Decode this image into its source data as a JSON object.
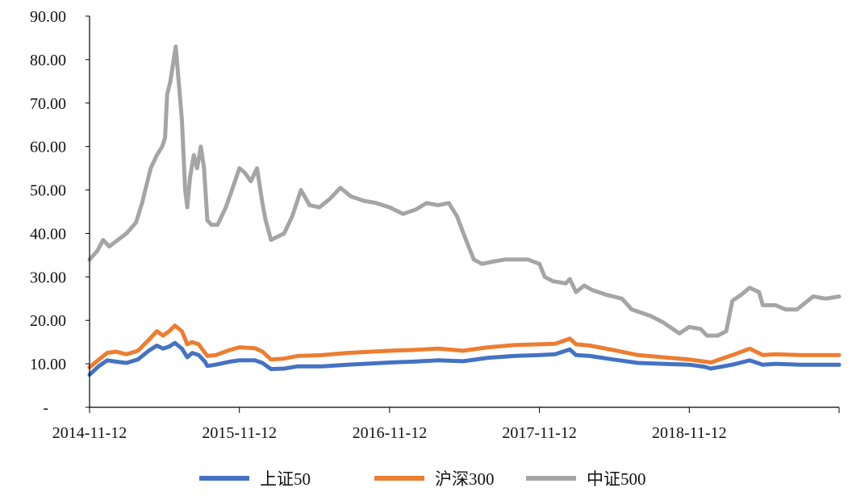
{
  "chart_data": {
    "type": "line",
    "title": "",
    "xlabel": "",
    "ylabel": "",
    "ylim": [
      0,
      90
    ],
    "yticks": [
      {
        "value": 0,
        "label": "-"
      },
      {
        "value": 10,
        "label": "10.00"
      },
      {
        "value": 20,
        "label": "20.00"
      },
      {
        "value": 30,
        "label": "30.00"
      },
      {
        "value": 40,
        "label": "40.00"
      },
      {
        "value": 50,
        "label": "50.00"
      },
      {
        "value": 60,
        "label": "60.00"
      },
      {
        "value": 70,
        "label": "70.00"
      },
      {
        "value": 80,
        "label": "80.00"
      },
      {
        "value": 90,
        "label": "90.00"
      }
    ],
    "xlim": [
      "2014-11-12",
      "2019-11-12"
    ],
    "xticks": [
      "2014-11-12",
      "2015-11-12",
      "2016-11-12",
      "2017-11-12",
      "2018-11-12"
    ],
    "grid": false,
    "legend_position": "bottom",
    "series": [
      {
        "name": "上证50",
        "color": "#4472C4",
        "points": [
          [
            "2014-11-12",
            7.5
          ],
          [
            "2014-12-05",
            9.5
          ],
          [
            "2014-12-25",
            10.8
          ],
          [
            "2015-01-15",
            10.5
          ],
          [
            "2015-02-10",
            10.2
          ],
          [
            "2015-03-10",
            11.0
          ],
          [
            "2015-04-05",
            13.0
          ],
          [
            "2015-04-25",
            14.2
          ],
          [
            "2015-05-10",
            13.5
          ],
          [
            "2015-05-25",
            14.0
          ],
          [
            "2015-06-08",
            14.8
          ],
          [
            "2015-06-25",
            13.5
          ],
          [
            "2015-07-08",
            11.5
          ],
          [
            "2015-07-20",
            12.5
          ],
          [
            "2015-08-05",
            12.0
          ],
          [
            "2015-08-20",
            10.5
          ],
          [
            "2015-08-26",
            9.5
          ],
          [
            "2015-09-15",
            9.8
          ],
          [
            "2015-10-20",
            10.5
          ],
          [
            "2015-11-12",
            10.8
          ],
          [
            "2015-12-20",
            10.8
          ],
          [
            "2016-01-07",
            10.2
          ],
          [
            "2016-01-28",
            8.8
          ],
          [
            "2016-02-29",
            8.9
          ],
          [
            "2016-04-01",
            9.4
          ],
          [
            "2016-06-01",
            9.4
          ],
          [
            "2016-08-01",
            9.8
          ],
          [
            "2016-11-12",
            10.3
          ],
          [
            "2017-01-10",
            10.5
          ],
          [
            "2017-03-10",
            10.8
          ],
          [
            "2017-05-10",
            10.6
          ],
          [
            "2017-07-10",
            11.4
          ],
          [
            "2017-09-10",
            11.8
          ],
          [
            "2017-11-12",
            12.0
          ],
          [
            "2017-12-20",
            12.2
          ],
          [
            "2018-01-25",
            13.3
          ],
          [
            "2018-02-09",
            12.0
          ],
          [
            "2018-03-15",
            11.8
          ],
          [
            "2018-05-10",
            11.0
          ],
          [
            "2018-07-10",
            10.2
          ],
          [
            "2018-09-10",
            10.0
          ],
          [
            "2018-11-12",
            9.8
          ],
          [
            "2018-12-20",
            9.3
          ],
          [
            "2019-01-03",
            8.9
          ],
          [
            "2019-02-25",
            9.8
          ],
          [
            "2019-04-08",
            10.8
          ],
          [
            "2019-05-10",
            9.8
          ],
          [
            "2019-06-10",
            10.0
          ],
          [
            "2019-08-10",
            9.8
          ],
          [
            "2019-11-12",
            9.8
          ]
        ]
      },
      {
        "name": "沪深300",
        "color": "#ED7D31",
        "points": [
          [
            "2014-11-12",
            9.2
          ],
          [
            "2014-12-05",
            11.0
          ],
          [
            "2014-12-25",
            12.5
          ],
          [
            "2015-01-15",
            12.8
          ],
          [
            "2015-02-10",
            12.2
          ],
          [
            "2015-03-10",
            13.0
          ],
          [
            "2015-04-05",
            15.5
          ],
          [
            "2015-04-25",
            17.5
          ],
          [
            "2015-05-10",
            16.5
          ],
          [
            "2015-05-25",
            17.5
          ],
          [
            "2015-06-08",
            18.8
          ],
          [
            "2015-06-25",
            17.5
          ],
          [
            "2015-07-08",
            14.5
          ],
          [
            "2015-07-20",
            15.0
          ],
          [
            "2015-08-05",
            14.5
          ],
          [
            "2015-08-20",
            12.5
          ],
          [
            "2015-08-26",
            11.8
          ],
          [
            "2015-09-15",
            12.0
          ],
          [
            "2015-10-20",
            13.2
          ],
          [
            "2015-11-12",
            13.8
          ],
          [
            "2015-12-20",
            13.6
          ],
          [
            "2016-01-07",
            12.8
          ],
          [
            "2016-01-28",
            11.0
          ],
          [
            "2016-02-29",
            11.2
          ],
          [
            "2016-04-01",
            11.8
          ],
          [
            "2016-06-01",
            12.0
          ],
          [
            "2016-08-01",
            12.5
          ],
          [
            "2016-11-12",
            13.0
          ],
          [
            "2017-01-10",
            13.2
          ],
          [
            "2017-03-10",
            13.5
          ],
          [
            "2017-05-10",
            13.0
          ],
          [
            "2017-07-10",
            13.8
          ],
          [
            "2017-09-10",
            14.3
          ],
          [
            "2017-11-12",
            14.5
          ],
          [
            "2017-12-20",
            14.6
          ],
          [
            "2018-01-25",
            15.8
          ],
          [
            "2018-02-09",
            14.5
          ],
          [
            "2018-03-15",
            14.2
          ],
          [
            "2018-05-10",
            13.2
          ],
          [
            "2018-07-10",
            12.0
          ],
          [
            "2018-09-10",
            11.5
          ],
          [
            "2018-11-12",
            11.0
          ],
          [
            "2018-12-20",
            10.5
          ],
          [
            "2019-01-03",
            10.3
          ],
          [
            "2019-02-25",
            12.0
          ],
          [
            "2019-04-08",
            13.5
          ],
          [
            "2019-05-10",
            12.0
          ],
          [
            "2019-06-10",
            12.2
          ],
          [
            "2019-08-10",
            12.0
          ],
          [
            "2019-11-12",
            12.0
          ]
        ]
      },
      {
        "name": "中证500",
        "color": "#A5A5A5",
        "points": [
          [
            "2014-11-12",
            34.0
          ],
          [
            "2014-12-01",
            36.0
          ],
          [
            "2014-12-15",
            38.5
          ],
          [
            "2014-12-30",
            37.0
          ],
          [
            "2015-01-20",
            38.5
          ],
          [
            "2015-02-10",
            40.0
          ],
          [
            "2015-03-05",
            42.5
          ],
          [
            "2015-03-20",
            47.0
          ],
          [
            "2015-04-10",
            55.0
          ],
          [
            "2015-04-25",
            58.0
          ],
          [
            "2015-05-08",
            60.0
          ],
          [
            "2015-05-15",
            62.0
          ],
          [
            "2015-05-20",
            72.0
          ],
          [
            "2015-05-28",
            75.0
          ],
          [
            "2015-06-05",
            80.0
          ],
          [
            "2015-06-10",
            83.0
          ],
          [
            "2015-06-18",
            74.0
          ],
          [
            "2015-06-25",
            66.0
          ],
          [
            "2015-07-03",
            50.0
          ],
          [
            "2015-07-08",
            46.0
          ],
          [
            "2015-07-15",
            53.0
          ],
          [
            "2015-07-24",
            58.0
          ],
          [
            "2015-08-01",
            55.0
          ],
          [
            "2015-08-10",
            60.0
          ],
          [
            "2015-08-18",
            55.0
          ],
          [
            "2015-08-26",
            43.0
          ],
          [
            "2015-09-05",
            42.0
          ],
          [
            "2015-09-20",
            42.0
          ],
          [
            "2015-10-10",
            46.0
          ],
          [
            "2015-10-25",
            50.0
          ],
          [
            "2015-11-12",
            55.0
          ],
          [
            "2015-11-25",
            54.0
          ],
          [
            "2015-12-10",
            52.0
          ],
          [
            "2015-12-25",
            55.0
          ],
          [
            "2016-01-07",
            47.0
          ],
          [
            "2016-01-15",
            43.0
          ],
          [
            "2016-01-28",
            38.5
          ],
          [
            "2016-02-29",
            40.0
          ],
          [
            "2016-03-20",
            44.0
          ],
          [
            "2016-04-10",
            50.0
          ],
          [
            "2016-05-01",
            46.5
          ],
          [
            "2016-05-25",
            46.0
          ],
          [
            "2016-06-20",
            48.0
          ],
          [
            "2016-07-15",
            50.5
          ],
          [
            "2016-08-10",
            48.5
          ],
          [
            "2016-09-10",
            47.5
          ],
          [
            "2016-10-10",
            47.0
          ],
          [
            "2016-11-12",
            46.0
          ],
          [
            "2016-12-15",
            44.5
          ],
          [
            "2017-01-15",
            45.5
          ],
          [
            "2017-02-10",
            47.0
          ],
          [
            "2017-03-10",
            46.5
          ],
          [
            "2017-04-05",
            47.0
          ],
          [
            "2017-04-25",
            44.0
          ],
          [
            "2017-05-15",
            39.0
          ],
          [
            "2017-06-05",
            34.0
          ],
          [
            "2017-06-25",
            33.0
          ],
          [
            "2017-07-20",
            33.5
          ],
          [
            "2017-08-20",
            34.0
          ],
          [
            "2017-09-15",
            34.0
          ],
          [
            "2017-10-15",
            34.0
          ],
          [
            "2017-11-12",
            33.0
          ],
          [
            "2017-11-25",
            30.0
          ],
          [
            "2017-12-15",
            29.0
          ],
          [
            "2018-01-15",
            28.5
          ],
          [
            "2018-01-25",
            29.5
          ],
          [
            "2018-02-09",
            26.5
          ],
          [
            "2018-03-01",
            28.0
          ],
          [
            "2018-03-20",
            27.0
          ],
          [
            "2018-04-20",
            26.0
          ],
          [
            "2018-06-01",
            25.0
          ],
          [
            "2018-06-25",
            22.5
          ],
          [
            "2018-08-10",
            21.0
          ],
          [
            "2018-09-10",
            19.5
          ],
          [
            "2018-10-19",
            17.0
          ],
          [
            "2018-11-12",
            18.5
          ],
          [
            "2018-12-10",
            18.0
          ],
          [
            "2018-12-25",
            16.5
          ],
          [
            "2019-01-20",
            16.5
          ],
          [
            "2019-02-10",
            17.5
          ],
          [
            "2019-02-25",
            24.5
          ],
          [
            "2019-03-20",
            26.0
          ],
          [
            "2019-04-08",
            27.5
          ],
          [
            "2019-05-01",
            26.5
          ],
          [
            "2019-05-10",
            23.5
          ],
          [
            "2019-06-10",
            23.5
          ],
          [
            "2019-07-05",
            22.5
          ],
          [
            "2019-08-01",
            22.5
          ],
          [
            "2019-09-10",
            25.5
          ],
          [
            "2019-10-10",
            25.0
          ],
          [
            "2019-11-12",
            25.5
          ]
        ]
      }
    ]
  }
}
